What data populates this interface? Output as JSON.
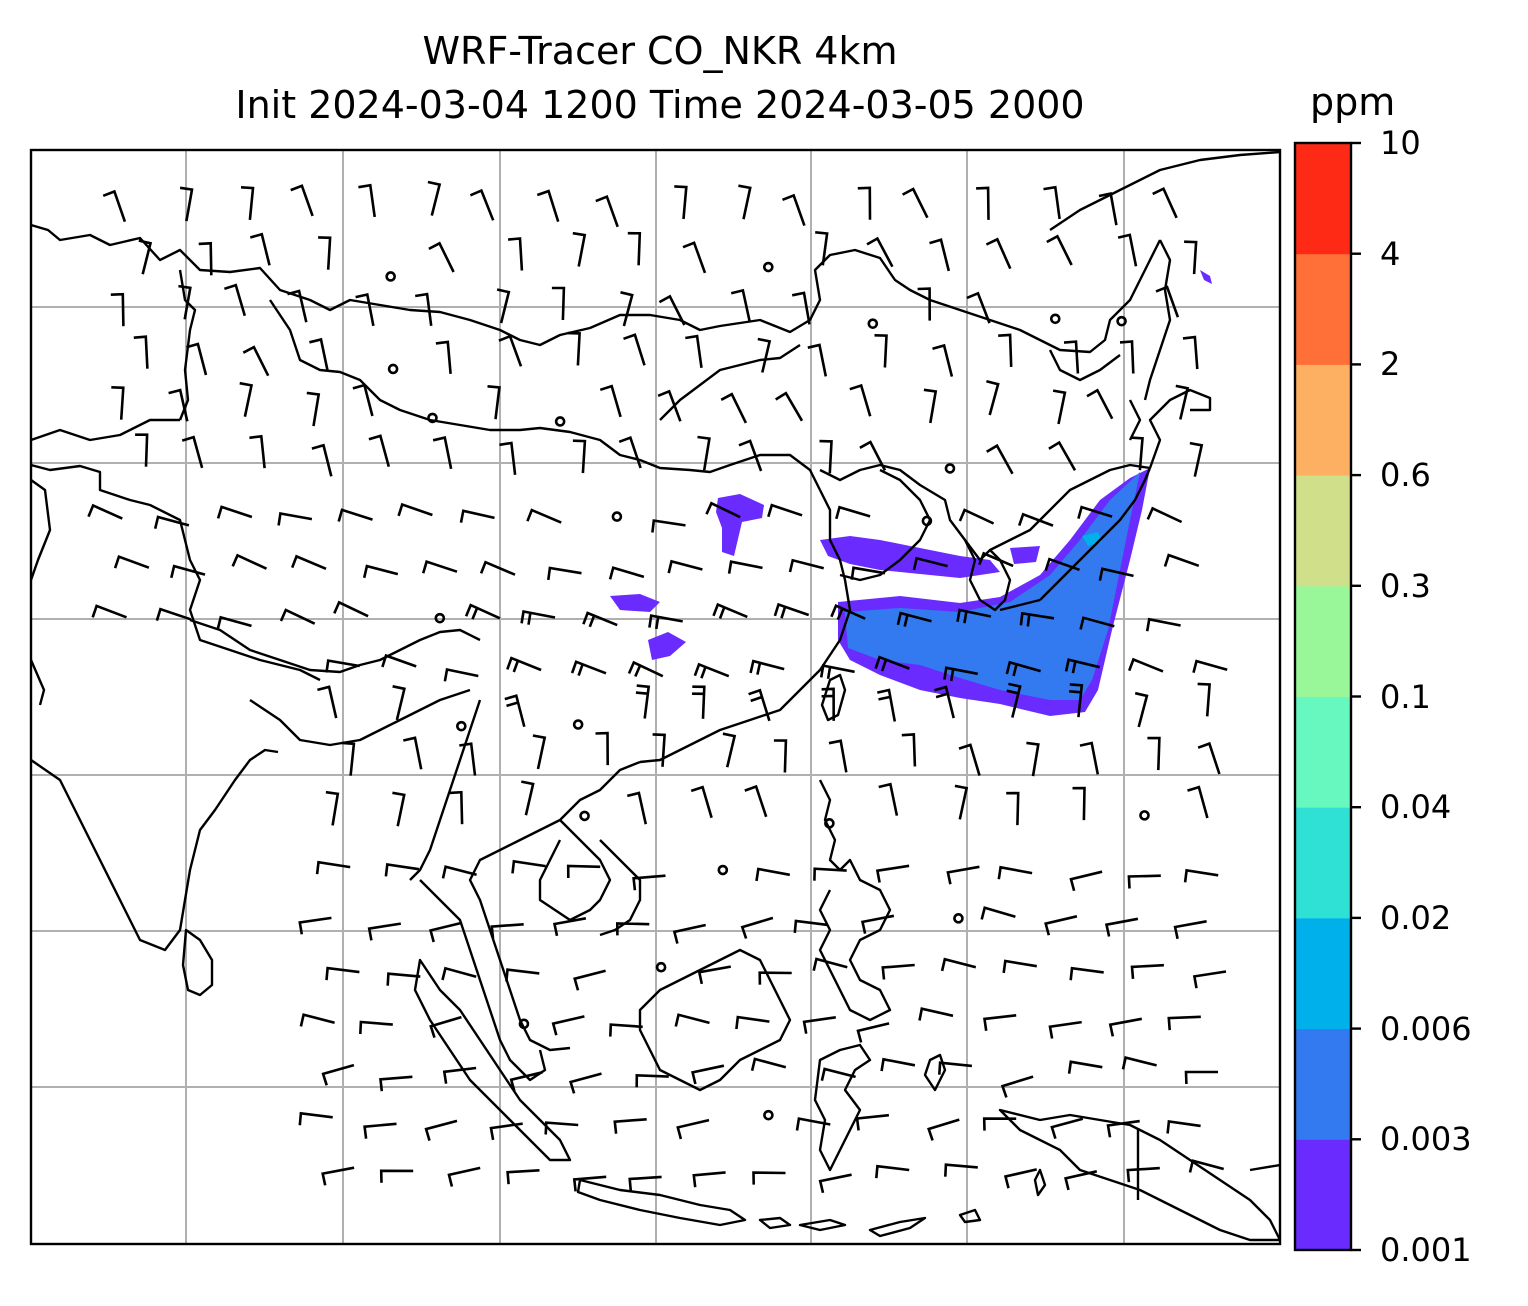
{
  "title_line1": "WRF-Tracer CO_NKR 4km",
  "title_line2": "Init 2024-03-04 1200 Time 2024-03-05 2000",
  "colorbar": {
    "unit": "ppm",
    "levels": [
      "0.001",
      "0.003",
      "0.006",
      "0.02",
      "0.04",
      "0.1",
      "0.3",
      "0.6",
      "2",
      "4",
      "10"
    ],
    "colors": [
      "#6a2bff",
      "#3379f0",
      "#00b0ea",
      "#2fe0d4",
      "#66f8be",
      "#99f79a",
      "#d0e08a",
      "#feb062",
      "#fe7038",
      "#fe2a16"
    ]
  },
  "map": {
    "gridlines": true,
    "features": [
      "coastlines",
      "country-borders",
      "wind-barbs",
      "tracer-plume"
    ],
    "plume_colors": [
      "#6a2bff",
      "#3379f0",
      "#00b0ea"
    ]
  }
}
